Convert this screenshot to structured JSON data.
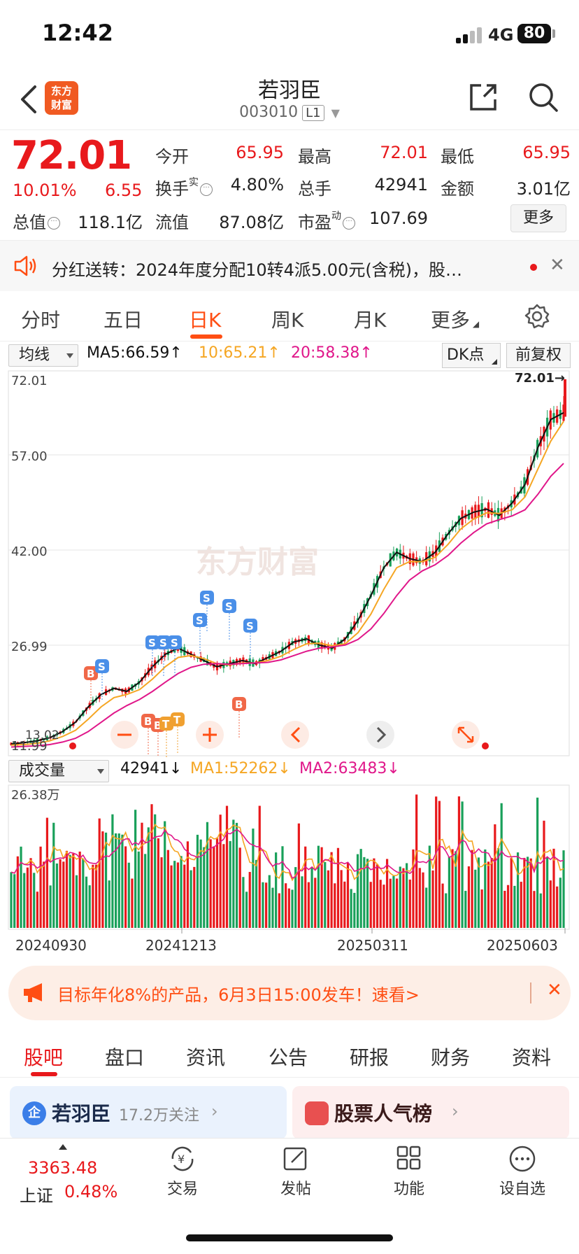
{
  "status_bar": {
    "time": "12:42",
    "network": "4G",
    "battery": "80"
  },
  "header": {
    "stock_name": "若羽臣",
    "stock_code": "003010",
    "level_badge": "L1",
    "logo_line1": "东方",
    "logo_line2": "财富"
  },
  "quote": {
    "price": "72.01",
    "change_pct": "10.01%",
    "change": "6.55",
    "fields": {
      "open_label": "今开",
      "open": "65.95",
      "high_label": "最高",
      "high": "72.01",
      "low_label": "最低",
      "low": "65.95",
      "turnover_label": "换手",
      "turnover_sup": "实",
      "turnover": "4.80%",
      "volume_label": "总手",
      "volume": "42941",
      "amount_label": "金额",
      "amount": "3.01亿",
      "total_cap_label": "总值",
      "total_cap": "118.1亿",
      "float_cap_label": "流值",
      "float_cap": "87.08亿",
      "pe_label": "市盈",
      "pe_sup": "动",
      "pe": "107.69"
    },
    "more_label": "更多"
  },
  "notice": {
    "text": "分红送转：2024年度分配10转4派5.00元(含税)，股…"
  },
  "period_tabs": [
    "分时",
    "五日",
    "日K",
    "周K",
    "月K",
    "更多"
  ],
  "chart_toolbar": {
    "ma_select": "均线",
    "ma5": "MA5:66.59↑",
    "ma10": "10:65.21↑",
    "ma20": "20:58.38↑",
    "dk": "DK点",
    "adjust": "前复权"
  },
  "volume_toolbar": {
    "select": "成交量",
    "volume": "42941↓",
    "ma1": "MA1:52262↓",
    "ma2": "MA2:63483↓"
  },
  "colors": {
    "up": "#e8191c",
    "down": "#19a05a",
    "ma5": "#111111",
    "ma10": "#f5a623",
    "ma20": "#e0178a",
    "accent": "#ff4e13"
  },
  "chart_data": {
    "type": "candlestick",
    "price_axis_labels": [
      "72.01",
      "57.00",
      "42.00",
      "26.99",
      "11.99"
    ],
    "ylim": [
      11.99,
      72.01
    ],
    "last_price_label": "72.01→",
    "low_marker_label": "13.02",
    "date_labels": [
      "20240930",
      "20241213",
      "20250311",
      "20250603"
    ],
    "volume_axis_label": "26.38万",
    "trade_markers": [
      "B",
      "S",
      "B",
      "B",
      "S",
      "S",
      "S",
      "T",
      "T",
      "S",
      "S",
      "S",
      "S",
      "B"
    ],
    "watermark": "东方财富",
    "series": [
      {
        "name": "MA5",
        "values": [
          13,
          13.2,
          13.5,
          14,
          15,
          16.5,
          19,
          21,
          22,
          21.5,
          23,
          25.5,
          27.5,
          28.5,
          27.5,
          26.5,
          25.5,
          26,
          26.5,
          26,
          27,
          28,
          29.5,
          30,
          29,
          28.5,
          30,
          33,
          37,
          41.5,
          44,
          43,
          42.5,
          44,
          47,
          49.5,
          50.5,
          51,
          50,
          52,
          55,
          61,
          65.5,
          66.6
        ]
      },
      {
        "name": "MA10",
        "values": [
          12.8,
          12.9,
          13.1,
          13.5,
          14.2,
          15.2,
          17,
          19,
          20.5,
          21,
          21.8,
          23.5,
          25.5,
          27,
          27.3,
          26.8,
          26,
          25.8,
          26.1,
          26.1,
          26.5,
          27.2,
          28.3,
          29.2,
          29.3,
          28.9,
          29.2,
          31,
          34,
          38,
          41.5,
          42.5,
          42.5,
          43.2,
          45.3,
          47.8,
          49.4,
          50.4,
          50.3,
          50.9,
          53,
          57.5,
          62,
          65.2
        ]
      },
      {
        "name": "MA20",
        "values": [
          12.5,
          12.6,
          12.7,
          12.9,
          13.3,
          13.9,
          15,
          16.5,
          18,
          19.2,
          20.2,
          21.5,
          23,
          24.4,
          25.4,
          25.9,
          26,
          25.9,
          26,
          26.1,
          26.2,
          26.6,
          27.3,
          28,
          28.5,
          28.7,
          29,
          29.9,
          31.6,
          34.1,
          37,
          39.5,
          41,
          42,
          43.5,
          45.5,
          47.2,
          48.6,
          49.3,
          49.9,
          50.9,
          53.4,
          56.3,
          58.4
        ]
      }
    ]
  },
  "promo": {
    "text": "目标年化8%的产品，6月3日15:00发车！速看>"
  },
  "section_tabs": [
    "股吧",
    "盘口",
    "资讯",
    "公告",
    "研报",
    "财务",
    "资料"
  ],
  "cards": {
    "company": {
      "name": "若羽臣",
      "followers": "17.2万关注",
      "icon": "企"
    },
    "ranking": {
      "title": "股票人气榜"
    }
  },
  "bottom_bar": {
    "index_value": "3363.48",
    "index_name": "上证",
    "index_pct": "0.48%",
    "nav": [
      "交易",
      "发帖",
      "功能",
      "设自选"
    ]
  }
}
